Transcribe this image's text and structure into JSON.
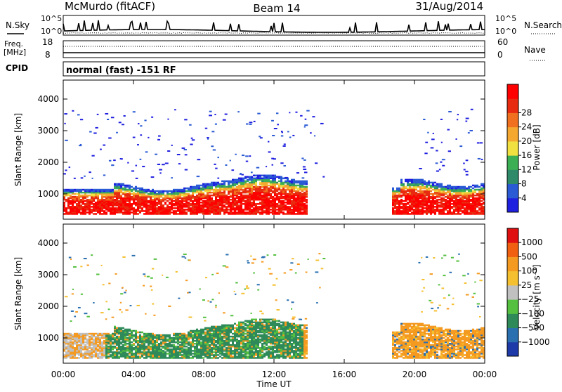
{
  "header": {
    "station": "McMurdo (fitACF)",
    "beam": "Beam 14",
    "date": "31/Aug/2014"
  },
  "noise_panel": {
    "left_label": "N.Sky",
    "right_label": "N.Search",
    "left_ticks": [
      "10^5",
      "10^0"
    ],
    "right_ticks": [
      "10^5",
      "10^0"
    ]
  },
  "freq_panel": {
    "left_label_line1": "Freq.",
    "left_label_line2": "[MHz]",
    "right_label": "Nave",
    "left_ticks": [
      "18",
      "8"
    ],
    "right_ticks": [
      "60",
      "0"
    ]
  },
  "cpid": {
    "label": "CPID",
    "text": "normal (fast) -151 RF"
  },
  "chart_data": [
    {
      "type": "heatmap",
      "title": "Power",
      "xlabel": "",
      "ylabel": "Slant Range [km]",
      "x_ticks": [
        "00:00",
        "04:00",
        "08:00",
        "12:00",
        "16:00",
        "20:00",
        "00:00"
      ],
      "y_ticks": [
        1000,
        2000,
        3000,
        4000
      ],
      "ylim": [
        200,
        4600
      ],
      "colorbar": {
        "label": "Power [dB]",
        "ticks": [
          "4",
          "8",
          "12",
          "16",
          "20",
          "24",
          "28"
        ],
        "colors": [
          "#1f1fe0",
          "#2a5ad4",
          "#2f8a6a",
          "#3cae54",
          "#f0e040",
          "#f5a830",
          "#f07020",
          "#e82a10",
          "#ff0000"
        ]
      }
    },
    {
      "type": "heatmap",
      "title": "Velocity",
      "xlabel": "Time UT",
      "ylabel": "Slant Range [km]",
      "x_ticks": [
        "00:00",
        "04:00",
        "08:00",
        "12:00",
        "16:00",
        "20:00",
        "00:00"
      ],
      "y_ticks": [
        1000,
        2000,
        3000,
        4000
      ],
      "ylim": [
        200,
        4600
      ],
      "colorbar": {
        "label": "Velocity [m s⁻¹]",
        "ticks": [
          "1000",
          "500",
          "100",
          "25",
          "−25",
          "−100",
          "−500",
          "−1000"
        ],
        "colors": [
          "#1e3aa8",
          "#2a6fb0",
          "#2f8a5a",
          "#55c040",
          "#c0c0c0",
          "#f5c030",
          "#f59a20",
          "#f06010",
          "#e01010"
        ]
      }
    }
  ]
}
